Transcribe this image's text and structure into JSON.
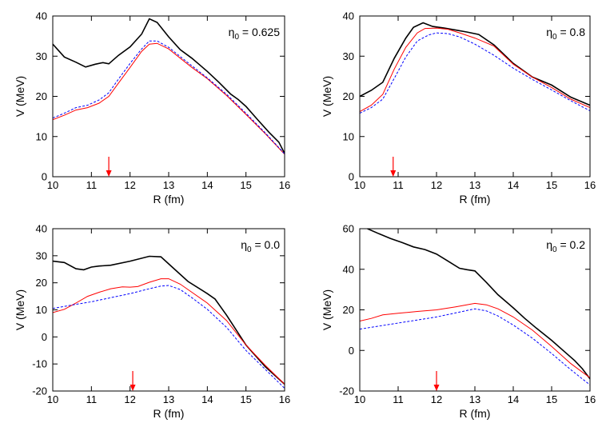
{
  "chart_data": [
    {
      "type": "line",
      "xlabel": "R (fm)",
      "ylabel": "V (MeV)",
      "xlim": [
        10,
        16
      ],
      "ylim": [
        0,
        40
      ],
      "xticks": [
        10,
        11,
        12,
        13,
        14,
        15,
        16
      ],
      "yticks": [
        0,
        10,
        20,
        30,
        40
      ],
      "annotation": {
        "symbol": "η",
        "subscript": "0",
        "text": " = 0.625"
      },
      "arrow_x": 11.45,
      "grid": false,
      "series": [
        {
          "name": "black",
          "color": "#000000",
          "style": "solid",
          "x": [
            10,
            10.3,
            10.6,
            10.85,
            11.1,
            11.3,
            11.45,
            11.7,
            12.0,
            12.3,
            12.5,
            12.7,
            13.0,
            13.3,
            13.6,
            14.0,
            14.3,
            14.6,
            14.8,
            15.0,
            15.3,
            15.6,
            15.85,
            16
          ],
          "y": [
            33,
            29.8,
            28.5,
            27.3,
            28,
            28.4,
            28.1,
            30.2,
            32.3,
            35.5,
            39.3,
            38.4,
            34.8,
            31.6,
            29.5,
            26.2,
            23.5,
            20.6,
            19.2,
            17.5,
            14.2,
            11.0,
            8.6,
            5.8
          ]
        },
        {
          "name": "red",
          "color": "#ff0000",
          "style": "solid",
          "x": [
            10,
            10.3,
            10.6,
            10.9,
            11.2,
            11.45,
            11.7,
            12.0,
            12.3,
            12.5,
            12.7,
            13.0,
            13.3,
            13.6,
            14.0,
            14.5,
            15.0,
            15.5,
            16
          ],
          "y": [
            14.2,
            15.3,
            16.6,
            17.2,
            18.3,
            20.0,
            23.3,
            27.2,
            31.2,
            33.0,
            33.2,
            31.8,
            29.5,
            27.2,
            24.4,
            20.2,
            15.5,
            10.7,
            5.6
          ]
        },
        {
          "name": "blue",
          "color": "#0000ff",
          "style": "dashed",
          "x": [
            10,
            10.3,
            10.6,
            10.9,
            11.2,
            11.45,
            11.7,
            12.0,
            12.3,
            12.5,
            12.7,
            13.0,
            13.3,
            13.6,
            14.0,
            14.5,
            15.0,
            15.5,
            16
          ],
          "y": [
            14.6,
            15.8,
            17.2,
            17.8,
            19.1,
            20.9,
            24.3,
            28.2,
            31.8,
            33.8,
            33.8,
            32.2,
            29.9,
            27.6,
            24.6,
            20.5,
            15.8,
            10.9,
            5.7
          ]
        }
      ]
    },
    {
      "type": "line",
      "xlabel": "R (fm)",
      "ylabel": "V (MeV)",
      "xlim": [
        10,
        16
      ],
      "ylim": [
        0,
        40
      ],
      "xticks": [
        10,
        11,
        12,
        13,
        14,
        15,
        16
      ],
      "yticks": [
        0,
        10,
        20,
        30,
        40
      ],
      "annotation": {
        "symbol": "η",
        "subscript": "0",
        "text": " = 0.8"
      },
      "arrow_x": 10.87,
      "grid": false,
      "series": [
        {
          "name": "black",
          "color": "#000000",
          "style": "solid",
          "x": [
            10,
            10.3,
            10.6,
            10.9,
            11.2,
            11.4,
            11.65,
            11.9,
            12.2,
            12.5,
            12.8,
            13.1,
            13.5,
            14.0,
            14.5,
            15.0,
            15.5,
            16
          ],
          "y": [
            20,
            21.5,
            23.5,
            29.5,
            34.5,
            37.2,
            38.3,
            37.4,
            37.0,
            36.5,
            36.0,
            35.4,
            32.8,
            28.2,
            24.8,
            22.8,
            19.8,
            17.8
          ]
        },
        {
          "name": "red",
          "color": "#ff0000",
          "style": "solid",
          "x": [
            10,
            10.3,
            10.6,
            10.9,
            11.2,
            11.5,
            11.7,
            12.0,
            12.3,
            12.6,
            13.0,
            13.5,
            14.0,
            14.5,
            15.0,
            15.5,
            16
          ],
          "y": [
            16.2,
            17.8,
            20.5,
            26.8,
            32.2,
            35.8,
            36.9,
            37.0,
            36.7,
            35.8,
            34.5,
            32.5,
            28.0,
            24.8,
            22.2,
            19.3,
            17.2
          ]
        },
        {
          "name": "blue",
          "color": "#0000ff",
          "style": "dashed",
          "x": [
            10,
            10.3,
            10.6,
            10.9,
            11.2,
            11.5,
            11.8,
            12.0,
            12.3,
            12.6,
            13.0,
            13.5,
            14.0,
            14.5,
            15.0,
            15.5,
            16
          ],
          "y": [
            15.8,
            17.2,
            19.3,
            24.5,
            29.8,
            33.8,
            35.3,
            35.8,
            35.6,
            34.8,
            33.0,
            30.2,
            27.0,
            24.2,
            21.6,
            18.9,
            16.4
          ]
        }
      ]
    },
    {
      "type": "line",
      "xlabel": "R (fm)",
      "ylabel": "V (MeV)",
      "xlim": [
        10,
        16
      ],
      "ylim": [
        -20,
        40
      ],
      "xticks": [
        10,
        11,
        12,
        13,
        14,
        15,
        16
      ],
      "yticks": [
        -20,
        -10,
        0,
        10,
        20,
        30,
        40
      ],
      "annotation": {
        "symbol": "η",
        "subscript": "0",
        "text": " = 0.0"
      },
      "arrow_x": 12.07,
      "grid": false,
      "series": [
        {
          "name": "black",
          "color": "#000000",
          "style": "solid",
          "x": [
            10,
            10.3,
            10.6,
            10.8,
            11.0,
            11.2,
            11.5,
            12.0,
            12.5,
            12.8,
            13.0,
            13.5,
            14.0,
            14.2,
            14.5,
            15.0,
            15.5,
            16
          ],
          "y": [
            28,
            27.5,
            25.2,
            24.8,
            25.8,
            26.2,
            26.5,
            28.0,
            29.8,
            29.6,
            27.0,
            20.5,
            16.0,
            14.0,
            8.0,
            -3.0,
            -11.0,
            -17.5
          ]
        },
        {
          "name": "red",
          "color": "#ff0000",
          "style": "solid",
          "x": [
            10,
            10.3,
            10.6,
            10.9,
            11.2,
            11.5,
            11.8,
            12.0,
            12.2,
            12.5,
            12.8,
            13.0,
            13.3,
            13.6,
            14.0,
            14.5,
            15.0,
            15.5,
            16
          ],
          "y": [
            9.0,
            10.2,
            12.5,
            15.0,
            16.5,
            17.8,
            18.5,
            18.4,
            18.6,
            20.2,
            21.5,
            21.5,
            19.5,
            16.5,
            12.5,
            6.0,
            -3.0,
            -10.5,
            -17.5
          ]
        },
        {
          "name": "blue",
          "color": "#0000ff",
          "style": "dashed",
          "x": [
            10,
            10.5,
            11.0,
            11.5,
            12.0,
            12.5,
            12.8,
            13.0,
            13.3,
            13.6,
            14.0,
            14.5,
            15.0,
            15.5,
            16
          ],
          "y": [
            10.5,
            11.8,
            13.0,
            14.5,
            16.0,
            17.8,
            18.8,
            19.0,
            17.5,
            14.5,
            10.2,
            3.5,
            -5.0,
            -12.0,
            -19.0
          ]
        }
      ]
    },
    {
      "type": "line",
      "xlabel": "R (fm)",
      "ylabel": "V (MeV)",
      "xlim": [
        10,
        16
      ],
      "ylim": [
        -20,
        60
      ],
      "xticks": [
        10,
        11,
        12,
        13,
        14,
        15,
        16
      ],
      "yticks": [
        -20,
        0,
        20,
        40,
        60
      ],
      "annotation": {
        "symbol": "η",
        "subscript": "0",
        "text": " = 0.2"
      },
      "arrow_x": 12.0,
      "grid": false,
      "series": [
        {
          "name": "black",
          "color": "#000000",
          "style": "solid",
          "x": [
            10.2,
            10.5,
            10.8,
            11.1,
            11.4,
            11.7,
            12.0,
            12.3,
            12.6,
            12.8,
            13.0,
            13.3,
            13.6,
            14.0,
            14.3,
            14.6,
            15.0,
            15.3,
            15.6,
            15.8,
            16
          ],
          "y": [
            60,
            57.5,
            55.2,
            53.2,
            51.0,
            49.7,
            47.5,
            44.0,
            40.5,
            39.8,
            39.2,
            33.5,
            27.5,
            21.0,
            15.8,
            11.0,
            5.0,
            0.0,
            -5.0,
            -9.0,
            -14.0
          ]
        },
        {
          "name": "red",
          "color": "#ff0000",
          "style": "solid",
          "x": [
            10,
            10.3,
            10.6,
            11.0,
            11.5,
            12.0,
            12.5,
            13.0,
            13.3,
            13.6,
            14.0,
            14.5,
            15.0,
            15.5,
            16
          ],
          "y": [
            14.5,
            15.8,
            17.5,
            18.3,
            19.2,
            20.0,
            21.5,
            23.2,
            22.5,
            20.5,
            16.5,
            10.0,
            2.0,
            -6.5,
            -13.5
          ]
        },
        {
          "name": "blue",
          "color": "#0000ff",
          "style": "dashed",
          "x": [
            10,
            10.5,
            11.0,
            11.5,
            12.0,
            12.5,
            13.0,
            13.3,
            13.6,
            14.0,
            14.5,
            15.0,
            15.5,
            16
          ],
          "y": [
            10.5,
            12.0,
            13.5,
            15.0,
            16.5,
            18.5,
            20.5,
            19.5,
            17.0,
            12.5,
            6.0,
            -1.5,
            -9.5,
            -17.0
          ]
        }
      ]
    }
  ]
}
